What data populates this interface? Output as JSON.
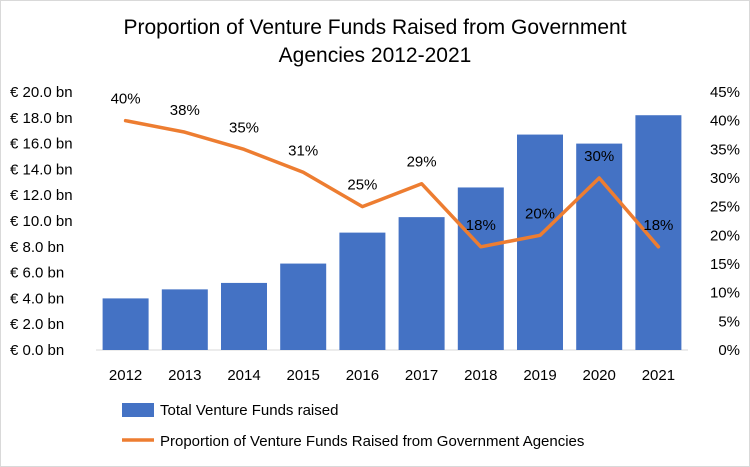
{
  "chart_data": {
    "type": "bar",
    "title_line1": "Proportion of Venture Funds Raised from Government",
    "title_line2": "Agencies 2012-2021",
    "categories": [
      "2012",
      "2013",
      "2014",
      "2015",
      "2016",
      "2017",
      "2018",
      "2019",
      "2020",
      "2021"
    ],
    "series": [
      {
        "name": "Total Venture Funds raised",
        "type": "bar",
        "axis": "left",
        "color": "#4472c4",
        "values": [
          4.0,
          4.7,
          5.2,
          6.7,
          9.1,
          10.3,
          12.6,
          16.7,
          16.0,
          18.2
        ]
      },
      {
        "name": "Proportion of Venture Funds Raised from Government Agencies",
        "type": "line",
        "axis": "right",
        "color": "#ed7d31",
        "values": [
          40,
          38,
          35,
          31,
          25,
          29,
          18,
          20,
          30,
          18
        ],
        "labels": [
          "40%",
          "38%",
          "35%",
          "31%",
          "25%",
          "29%",
          "18%",
          "20%",
          "30%",
          "18%"
        ]
      }
    ],
    "y_left": {
      "lim": [
        0,
        20
      ],
      "ticks": [
        0,
        2,
        4,
        6,
        8,
        10,
        12,
        14,
        16,
        18,
        20
      ],
      "tick_labels": [
        "€ 0.0 bn",
        "€ 2.0 bn",
        "€ 4.0 bn",
        "€ 6.0 bn",
        "€ 8.0 bn",
        "€ 10.0 bn",
        "€ 12.0 bn",
        "€ 14.0 bn",
        "€ 16.0 bn",
        "€ 18.0 bn",
        "€ 20.0 bn"
      ]
    },
    "y_right": {
      "lim": [
        0,
        45
      ],
      "ticks": [
        0,
        5,
        10,
        15,
        20,
        25,
        30,
        35,
        40,
        45
      ],
      "tick_labels": [
        "0%",
        "5%",
        "10%",
        "15%",
        "20%",
        "25%",
        "30%",
        "35%",
        "40%",
        "45%"
      ]
    },
    "grid": false,
    "legend_position": "bottom"
  }
}
